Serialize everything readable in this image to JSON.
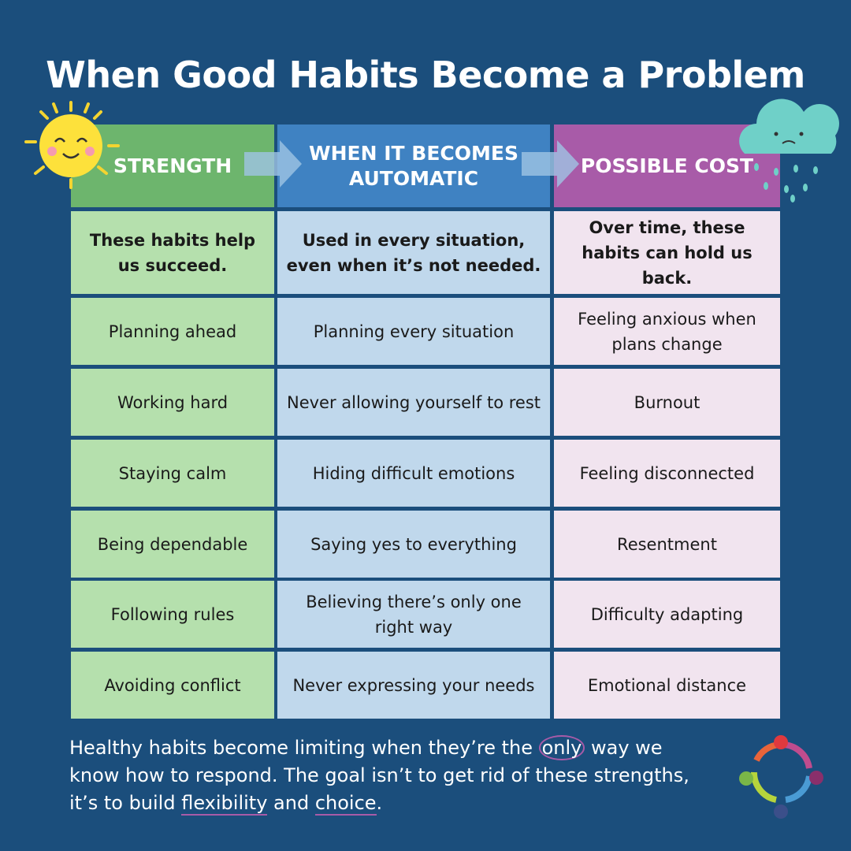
{
  "title": "When Good Habits Become a Problem",
  "table": {
    "headers": [
      "STRENGTH",
      "WHEN IT BECOMES AUTOMATIC",
      "POSSIBLE COST"
    ],
    "subheaders": [
      "These habits help us succeed.",
      "Used in every situation, even when it’s not needed.",
      "Over time, these habits can hold us back."
    ],
    "rows": [
      [
        "Planning ahead",
        "Planning every situation",
        "Feeling anxious when plans change"
      ],
      [
        "Working hard",
        "Never allowing yourself to rest",
        "Burnout"
      ],
      [
        "Staying calm",
        "Hiding difficult emotions",
        "Feeling disconnected"
      ],
      [
        "Being dependable",
        "Saying yes to everything",
        "Resentment"
      ],
      [
        "Following rules",
        "Believing there’s only one right way",
        "Difficulty adapting"
      ],
      [
        "Avoiding conflict",
        "Never expressing your needs",
        "Emotional distance"
      ]
    ]
  },
  "footer": {
    "parts": [
      "Healthy habits become limiting when they’re the ",
      "only",
      " way we know how to respond. The goal isn’t to get rid of these strengths, it’s to build ",
      "flexibility",
      " and ",
      "choice",
      "."
    ]
  }
}
